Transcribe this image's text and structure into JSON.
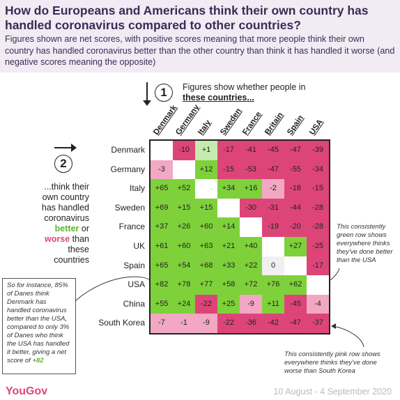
{
  "title": "How do Europeans and Americans think their own country has handled coronavirus compared to other countries?",
  "subtitle": "Figures shown are net scores, with positive scores meaning that more people think their own country has handled coronavirus better than the other country than think it has handled it worse (and negative scores meaning the opposite)",
  "step1": {
    "number": "1",
    "text": "Figures show whether people in",
    "emph": "these countries..."
  },
  "step2": {
    "number": "2",
    "pre": "...think their own country has handled coronavirus",
    "better": "better",
    "or": "or",
    "worse": "worse",
    "post": "than these countries"
  },
  "annotations": {
    "green_row": "This consistently green row shows everywhere thinks they've done better than the USA",
    "pink_row": "This consistently pink row shows everywhere thinks they've done worse than South Korea",
    "example": "So for instance, 85% of Danes think Denmark has handled coronavirus better than the USA, compared to only 3% of Danes who think the USA has handled it better, giving a net score of",
    "example_value": "+82"
  },
  "brand": "YouGov",
  "date": "10 August - 4 September 2020",
  "colors": {
    "strong_green": "#7fd13b",
    "light_green": "#c6ebb0",
    "strong_pink": "#dd4579",
    "light_pink": "#f2a7c3",
    "neutral": "#f0f0f0",
    "header_bg": "#f1ecf4",
    "title_text": "#3d2a55"
  },
  "chart_data": {
    "type": "heatmap",
    "columns": [
      "Denmark",
      "Germany",
      "Italy",
      "Sweden",
      "France",
      "Britain",
      "Spain",
      "USA"
    ],
    "rows": [
      "Denmark",
      "Germany",
      "Italy",
      "Sweden",
      "France",
      "UK",
      "Spain",
      "USA",
      "China",
      "South Korea"
    ],
    "values": [
      [
        null,
        "-10",
        "+1",
        "-17",
        "-41",
        "-45",
        "-47",
        "-39"
      ],
      [
        "-3",
        null,
        "+12",
        "-15",
        "-53",
        "-47",
        "-55",
        "-34"
      ],
      [
        "+65",
        "+52",
        null,
        "+34",
        "+16",
        "-2",
        "-18",
        "-15"
      ],
      [
        "+69",
        "+15",
        "+15",
        null,
        "-30",
        "-31",
        "-44",
        "-28"
      ],
      [
        "+37",
        "+26",
        "+60",
        "+14",
        null,
        "-19",
        "-20",
        "-28"
      ],
      [
        "+61",
        "+60",
        "+63",
        "+21",
        "+40",
        null,
        "+27",
        "-25"
      ],
      [
        "+65",
        "+54",
        "+68",
        "+33",
        "+22",
        "0",
        null,
        "-17"
      ],
      [
        "+82",
        "+78",
        "+77",
        "+58",
        "+72",
        "+76",
        "+62",
        null
      ],
      [
        "+55",
        "+24",
        "-22",
        "+25",
        "-9",
        "+11",
        "-45",
        "-4"
      ],
      [
        "-7",
        "-1",
        "-9",
        "-22",
        "-36",
        "-42",
        "-47",
        "-37"
      ]
    ]
  }
}
